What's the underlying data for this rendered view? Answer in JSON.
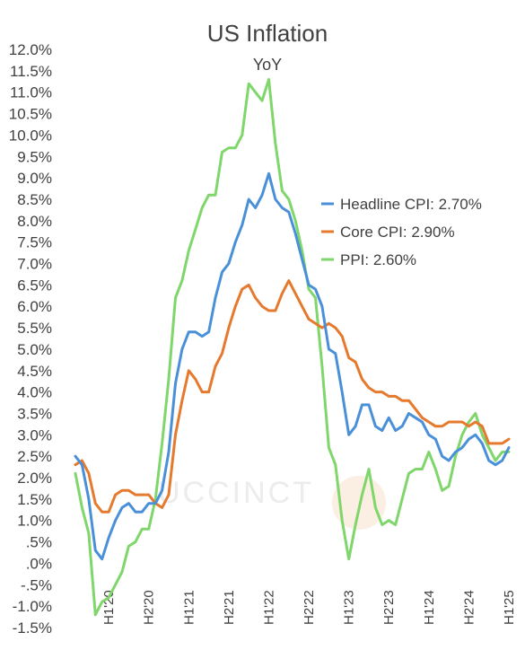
{
  "watermark": "UCCINCT",
  "chart_data": {
    "type": "line",
    "title": "US Inflation",
    "subtitle": "YoY",
    "xlabel": "",
    "ylabel": "",
    "ylim": [
      -1.5,
      12.0
    ],
    "y_ticks": [
      -1.5,
      -1.0,
      -0.5,
      0.0,
      0.5,
      1.0,
      1.5,
      2.0,
      2.5,
      3.0,
      3.5,
      4.0,
      4.5,
      5.0,
      5.5,
      6.0,
      6.5,
      7.0,
      7.5,
      8.0,
      8.5,
      9.0,
      9.5,
      10.0,
      10.5,
      11.0,
      11.5,
      12.0
    ],
    "y_tick_labels": [
      "-1.5%",
      "-1.0%",
      "-.5%",
      ".0%",
      ".5%",
      "1.0%",
      "1.5%",
      "2.0%",
      "2.5%",
      "3.0%",
      "3.5%",
      "4.0%",
      "4.5%",
      "5.0%",
      "5.5%",
      "6.0%",
      "6.5%",
      "7.0%",
      "7.5%",
      "8.0%",
      "8.5%",
      "9.0%",
      "9.5%",
      "10.0%",
      "10.5%",
      "11.0%",
      "11.5%",
      "12.0%"
    ],
    "x_ticks": [
      {
        "index": 5,
        "label": "H1'20"
      },
      {
        "index": 11,
        "label": "H2'20"
      },
      {
        "index": 17,
        "label": "H1'21"
      },
      {
        "index": 23,
        "label": "H2'21"
      },
      {
        "index": 29,
        "label": "H1'22"
      },
      {
        "index": 35,
        "label": "H2'22"
      },
      {
        "index": 41,
        "label": "H1'23"
      },
      {
        "index": 47,
        "label": "H2'23"
      },
      {
        "index": 53,
        "label": "H1'24"
      },
      {
        "index": 59,
        "label": "H2'24"
      },
      {
        "index": 65,
        "label": "H1'25"
      }
    ],
    "grid": false,
    "legend_position": "right",
    "series": [
      {
        "name": "Headline CPI: 2.70%",
        "color": "#4a90d9",
        "values": [
          2.5,
          2.3,
          1.5,
          0.3,
          0.1,
          0.6,
          1.0,
          1.3,
          1.4,
          1.2,
          1.2,
          1.4,
          1.4,
          1.7,
          2.6,
          4.2,
          5.0,
          5.4,
          5.4,
          5.3,
          5.4,
          6.2,
          6.8,
          7.0,
          7.5,
          7.9,
          8.5,
          8.3,
          8.6,
          9.1,
          8.5,
          8.3,
          8.2,
          7.7,
          7.1,
          6.5,
          6.4,
          6.0,
          5.0,
          4.9,
          4.0,
          3.0,
          3.2,
          3.7,
          3.7,
          3.2,
          3.1,
          3.4,
          3.1,
          3.2,
          3.5,
          3.4,
          3.3,
          3.0,
          2.9,
          2.5,
          2.4,
          2.6,
          2.7,
          2.9,
          3.0,
          2.8,
          2.4,
          2.3,
          2.4,
          2.7
        ]
      },
      {
        "name": "Core CPI: 2.90%",
        "color": "#e57a2e",
        "values": [
          2.3,
          2.4,
          2.1,
          1.4,
          1.2,
          1.2,
          1.6,
          1.7,
          1.7,
          1.6,
          1.6,
          1.6,
          1.4,
          1.3,
          1.6,
          3.0,
          3.8,
          4.5,
          4.3,
          4.0,
          4.0,
          4.6,
          4.9,
          5.5,
          6.0,
          6.4,
          6.5,
          6.2,
          6.0,
          5.9,
          5.9,
          6.3,
          6.6,
          6.3,
          6.0,
          5.7,
          5.6,
          5.5,
          5.6,
          5.5,
          5.3,
          4.8,
          4.7,
          4.3,
          4.1,
          4.0,
          4.0,
          3.9,
          3.9,
          3.8,
          3.8,
          3.6,
          3.4,
          3.3,
          3.2,
          3.2,
          3.3,
          3.3,
          3.3,
          3.2,
          3.3,
          3.2,
          2.8,
          2.8,
          2.8,
          2.9
        ]
      },
      {
        "name": "PPI: 2.60%",
        "color": "#7fd66a",
        "values": [
          2.1,
          1.3,
          0.7,
          -1.2,
          -0.9,
          -0.8,
          -0.5,
          -0.2,
          0.4,
          0.5,
          0.8,
          0.8,
          1.5,
          2.8,
          4.3,
          6.2,
          6.6,
          7.3,
          7.8,
          8.3,
          8.6,
          8.6,
          9.6,
          9.7,
          9.7,
          10.0,
          11.2,
          11.0,
          10.8,
          11.3,
          9.8,
          8.7,
          8.5,
          8.0,
          7.3,
          6.4,
          6.2,
          4.6,
          2.7,
          2.3,
          1.0,
          0.1,
          0.9,
          1.6,
          2.2,
          1.3,
          0.9,
          1.0,
          0.9,
          1.5,
          2.1,
          2.2,
          2.2,
          2.6,
          2.2,
          1.7,
          1.8,
          2.5,
          3.0,
          3.3,
          3.5,
          3.0,
          2.7,
          2.4,
          2.6,
          2.6
        ]
      }
    ]
  }
}
